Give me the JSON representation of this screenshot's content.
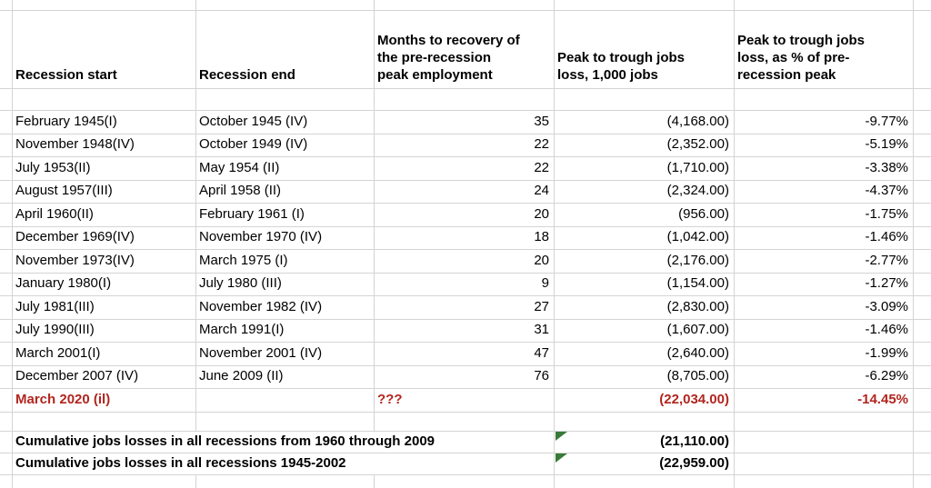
{
  "sheet": {
    "columns": {
      "blank": "",
      "start": "Recession start",
      "end": "Recession end",
      "months": "Months to recovery of\nthe pre-recession\npeak employment",
      "loss": "Peak to trough jobs\nloss, 1,000 jobs",
      "pct": "Peak to trough jobs\nloss, as % of pre-\nrecession peak"
    },
    "rows": [
      {
        "start": "February 1945(I)",
        "end": "October 1945 (IV)",
        "months": "35",
        "loss": "(4,168.00)",
        "pct": "-9.77%"
      },
      {
        "start": "November 1948(IV)",
        "end": "October 1949 (IV)",
        "months": "22",
        "loss": "(2,352.00)",
        "pct": "-5.19%"
      },
      {
        "start": "July 1953(II)",
        "end": "May 1954 (II)",
        "months": "22",
        "loss": "(1,710.00)",
        "pct": "-3.38%"
      },
      {
        "start": "August 1957(III)",
        "end": "April 1958 (II)",
        "months": "24",
        "loss": "(2,324.00)",
        "pct": "-4.37%"
      },
      {
        "start": "April 1960(II)",
        "end": "February 1961 (I)",
        "months": "20",
        "loss": "(956.00)",
        "pct": "-1.75%"
      },
      {
        "start": "December 1969(IV)",
        "end": "November 1970 (IV)",
        "months": "18",
        "loss": "(1,042.00)",
        "pct": "-1.46%"
      },
      {
        "start": "November 1973(IV)",
        "end": "March 1975 (I)",
        "months": "20",
        "loss": "(2,176.00)",
        "pct": "-2.77%"
      },
      {
        "start": "January 1980(I)",
        "end": "July 1980 (III)",
        "months": "9",
        "loss": "(1,154.00)",
        "pct": "-1.27%"
      },
      {
        "start": "July 1981(III)",
        "end": "November 1982 (IV)",
        "months": "27",
        "loss": "(2,830.00)",
        "pct": "-3.09%"
      },
      {
        "start": "July 1990(III)",
        "end": "March 1991(I)",
        "months": "31",
        "loss": "(1,607.00)",
        "pct": "-1.46%"
      },
      {
        "start": "March 2001(I)",
        "end": "November 2001 (IV)",
        "months": "47",
        "loss": "(2,640.00)",
        "pct": "-1.99%"
      },
      {
        "start": "December 2007 (IV)",
        "end": "June 2009 (II)",
        "months": "76",
        "loss": "(8,705.00)",
        "pct": "-6.29%"
      },
      {
        "start": "March 2020 (il)",
        "end": "",
        "months": "???",
        "loss": "(22,034.00)",
        "pct": "-14.45%",
        "highlight": true
      }
    ],
    "summary": [
      {
        "label": "Cumulative jobs losses in all recessions from 1960 through 2009",
        "value": "(21,110.00)"
      },
      {
        "label": "Cumulative jobs losses in all recessions 1945-2002",
        "value": "(22,959.00)"
      }
    ],
    "colors": {
      "highlight_red": "#b2251e",
      "flag_green": "#387a38",
      "gridline": "#d4d4d4",
      "text": "#000000",
      "background": "#ffffff"
    }
  }
}
